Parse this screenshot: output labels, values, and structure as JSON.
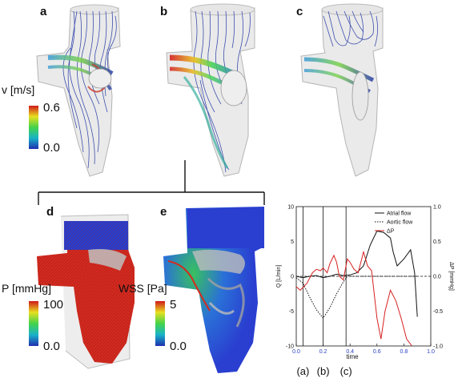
{
  "panels": {
    "a": "a",
    "b": "b",
    "c": "c",
    "d": "d",
    "e": "e"
  },
  "colorbars": {
    "velocity": {
      "label": "v [m/s]",
      "max": "0.6",
      "min": "0.0"
    },
    "pressure": {
      "label": "P [mmHg]",
      "max": "100",
      "min": "0.0"
    },
    "wss": {
      "label": "WSS [Pa]",
      "max": "5",
      "min": "0.0"
    }
  },
  "colors": {
    "vessel": "#d9d9d9",
    "streamline": "#2b3fa8",
    "pressure_red": "#d42a1f",
    "wss_blue": "#2a3fd0",
    "atrial": "#111111",
    "dp": "#d62020"
  },
  "chart_data": {
    "type": "line",
    "xlabel": "time",
    "ylabel": "Q [L/min]",
    "ylabel_right": "ΔP [mmHg]",
    "xlim": [
      0,
      1.0
    ],
    "ylim": [
      -10,
      10
    ],
    "ylim_right": [
      -1.0,
      1.0
    ],
    "x_ticks": [
      "0.0",
      "0.2",
      "0.4",
      "0.6",
      "0.8",
      "1.0"
    ],
    "y_ticks": [
      "10",
      "5",
      "0",
      "-5",
      "-10"
    ],
    "y_ticks_right": [
      "1.0",
      "0.5",
      "0.0",
      "-0.5",
      "-1.0"
    ],
    "vlines": [
      {
        "x": 0.05,
        "label": "(a)"
      },
      {
        "x": 0.2,
        "label": "(b)"
      },
      {
        "x": 0.37,
        "label": "(c)"
      }
    ],
    "legend_position": "top-right",
    "series": [
      {
        "name": "Atrial flow",
        "axis": "left",
        "style": "solid",
        "x": [
          0,
          0.05,
          0.1,
          0.15,
          0.2,
          0.25,
          0.3,
          0.35,
          0.4,
          0.45,
          0.5,
          0.55,
          0.6,
          0.65,
          0.7,
          0.72,
          0.75,
          0.8,
          0.85,
          0.88,
          0.9
        ],
        "y": [
          0,
          -0.2,
          0,
          0.1,
          -0.2,
          0,
          0.3,
          0.1,
          0.2,
          0.5,
          1.5,
          4.5,
          6.5,
          6.3,
          5.5,
          3.5,
          1.5,
          2.5,
          3.8,
          0.5,
          -5.8
        ]
      },
      {
        "name": "Aortic flow",
        "axis": "left",
        "style": "dotted",
        "x": [
          0,
          0.05,
          0.1,
          0.15,
          0.2,
          0.25,
          0.3,
          0.35,
          0.38,
          0.4,
          0.5,
          0.6,
          0.7,
          0.8,
          0.9
        ],
        "y": [
          -0.2,
          -1.0,
          -3.0,
          -4.8,
          -6.0,
          -4.5,
          -2.5,
          -0.8,
          0,
          0,
          0,
          0,
          0,
          0,
          0
        ]
      },
      {
        "name": "ΔP",
        "axis": "right",
        "style": "solid",
        "x": [
          0,
          0.03,
          0.08,
          0.12,
          0.15,
          0.18,
          0.2,
          0.23,
          0.25,
          0.28,
          0.3,
          0.32,
          0.35,
          0.38,
          0.4,
          0.43,
          0.46,
          0.5,
          0.53,
          0.56,
          0.6,
          0.63,
          0.66,
          0.7,
          0.74,
          0.78,
          0.82,
          0.86
        ],
        "y": [
          -0.15,
          -0.2,
          -0.1,
          0.05,
          0.1,
          0.08,
          0.12,
          0.05,
          0.18,
          0.3,
          0.2,
          0.0,
          -0.05,
          0.25,
          0.2,
          0.1,
          0.05,
          0.35,
          0.15,
          0.08,
          -0.6,
          -0.9,
          -0.5,
          -0.2,
          -0.35,
          -0.6,
          -0.9,
          -1.0
        ]
      }
    ]
  }
}
